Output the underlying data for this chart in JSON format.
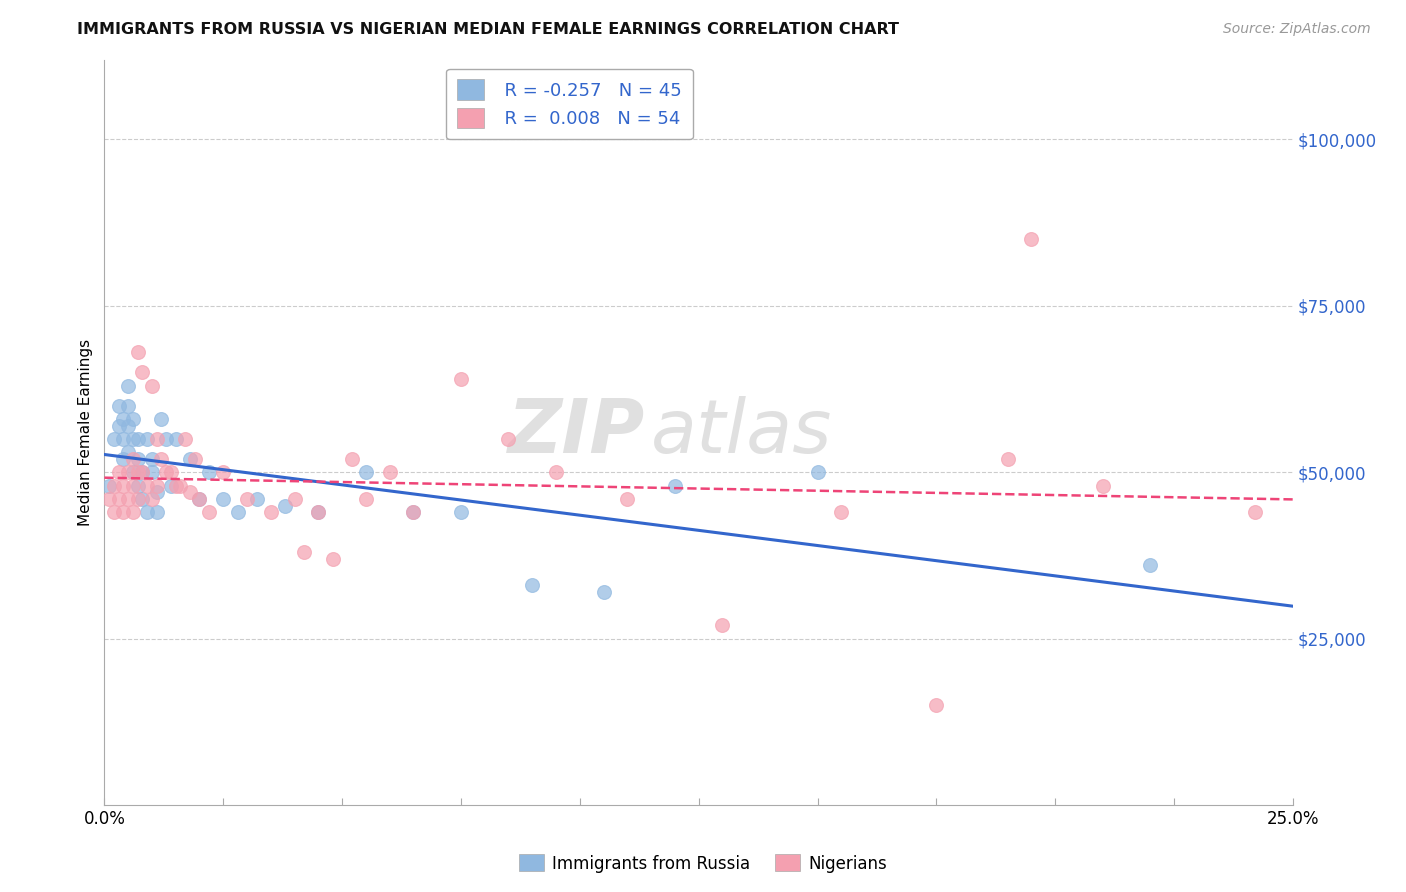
{
  "title": "IMMIGRANTS FROM RUSSIA VS NIGERIAN MEDIAN FEMALE EARNINGS CORRELATION CHART",
  "source": "Source: ZipAtlas.com",
  "ylabel": "Median Female Earnings",
  "ytick_labels": [
    "$25,000",
    "$50,000",
    "$75,000",
    "$100,000"
  ],
  "ytick_values": [
    25000,
    50000,
    75000,
    100000
  ],
  "ymin": 0,
  "ymax": 112000,
  "xmin": 0.0,
  "xmax": 0.25,
  "watermark_zip": "ZIP",
  "watermark_atlas": "atlas",
  "legend_russia_r": "R = -0.257",
  "legend_russia_n": "N = 45",
  "legend_nigeria_r": "R =  0.008",
  "legend_nigeria_n": "N = 54",
  "blue_color": "#90B8E0",
  "pink_color": "#F4A0B0",
  "blue_line_color": "#3366CC",
  "pink_line_color": "#EE4477",
  "russia_x": [
    0.001,
    0.002,
    0.003,
    0.003,
    0.004,
    0.004,
    0.004,
    0.005,
    0.005,
    0.005,
    0.005,
    0.006,
    0.006,
    0.006,
    0.007,
    0.007,
    0.007,
    0.008,
    0.008,
    0.009,
    0.009,
    0.01,
    0.01,
    0.011,
    0.011,
    0.012,
    0.013,
    0.014,
    0.015,
    0.018,
    0.02,
    0.022,
    0.025,
    0.028,
    0.032,
    0.038,
    0.045,
    0.055,
    0.065,
    0.075,
    0.09,
    0.105,
    0.12,
    0.15,
    0.22
  ],
  "russia_y": [
    48000,
    55000,
    57000,
    60000,
    55000,
    58000,
    52000,
    57000,
    53000,
    60000,
    63000,
    55000,
    58000,
    50000,
    55000,
    52000,
    48000,
    50000,
    46000,
    55000,
    44000,
    50000,
    52000,
    47000,
    44000,
    58000,
    55000,
    48000,
    55000,
    52000,
    46000,
    50000,
    46000,
    44000,
    46000,
    45000,
    44000,
    50000,
    44000,
    44000,
    33000,
    32000,
    48000,
    50000,
    36000
  ],
  "nigeria_x": [
    0.001,
    0.002,
    0.002,
    0.003,
    0.003,
    0.004,
    0.004,
    0.005,
    0.005,
    0.006,
    0.006,
    0.006,
    0.007,
    0.007,
    0.007,
    0.008,
    0.008,
    0.009,
    0.01,
    0.01,
    0.011,
    0.011,
    0.012,
    0.013,
    0.014,
    0.015,
    0.016,
    0.017,
    0.018,
    0.019,
    0.02,
    0.022,
    0.025,
    0.03,
    0.035,
    0.04,
    0.042,
    0.045,
    0.048,
    0.052,
    0.055,
    0.06,
    0.065,
    0.075,
    0.085,
    0.095,
    0.11,
    0.13,
    0.155,
    0.175,
    0.19,
    0.195,
    0.21,
    0.242
  ],
  "nigeria_y": [
    46000,
    44000,
    48000,
    46000,
    50000,
    44000,
    48000,
    46000,
    50000,
    44000,
    48000,
    52000,
    46000,
    50000,
    68000,
    50000,
    65000,
    48000,
    46000,
    63000,
    48000,
    55000,
    52000,
    50000,
    50000,
    48000,
    48000,
    55000,
    47000,
    52000,
    46000,
    44000,
    50000,
    46000,
    44000,
    46000,
    38000,
    44000,
    37000,
    52000,
    46000,
    50000,
    44000,
    64000,
    55000,
    50000,
    46000,
    27000,
    44000,
    15000,
    52000,
    85000,
    48000,
    44000
  ],
  "russia_marker_size": 100,
  "nigeria_marker_size": 100,
  "background_color": "#FFFFFF",
  "grid_color": "#CCCCCC",
  "xtick_positions": [
    0.0,
    0.025,
    0.05,
    0.075,
    0.1,
    0.125,
    0.15,
    0.175,
    0.2,
    0.225,
    0.25
  ],
  "xtick_labels": [
    "0.0%",
    "",
    "",
    "",
    "",
    "",
    "",
    "",
    "",
    "",
    "25.0%"
  ]
}
